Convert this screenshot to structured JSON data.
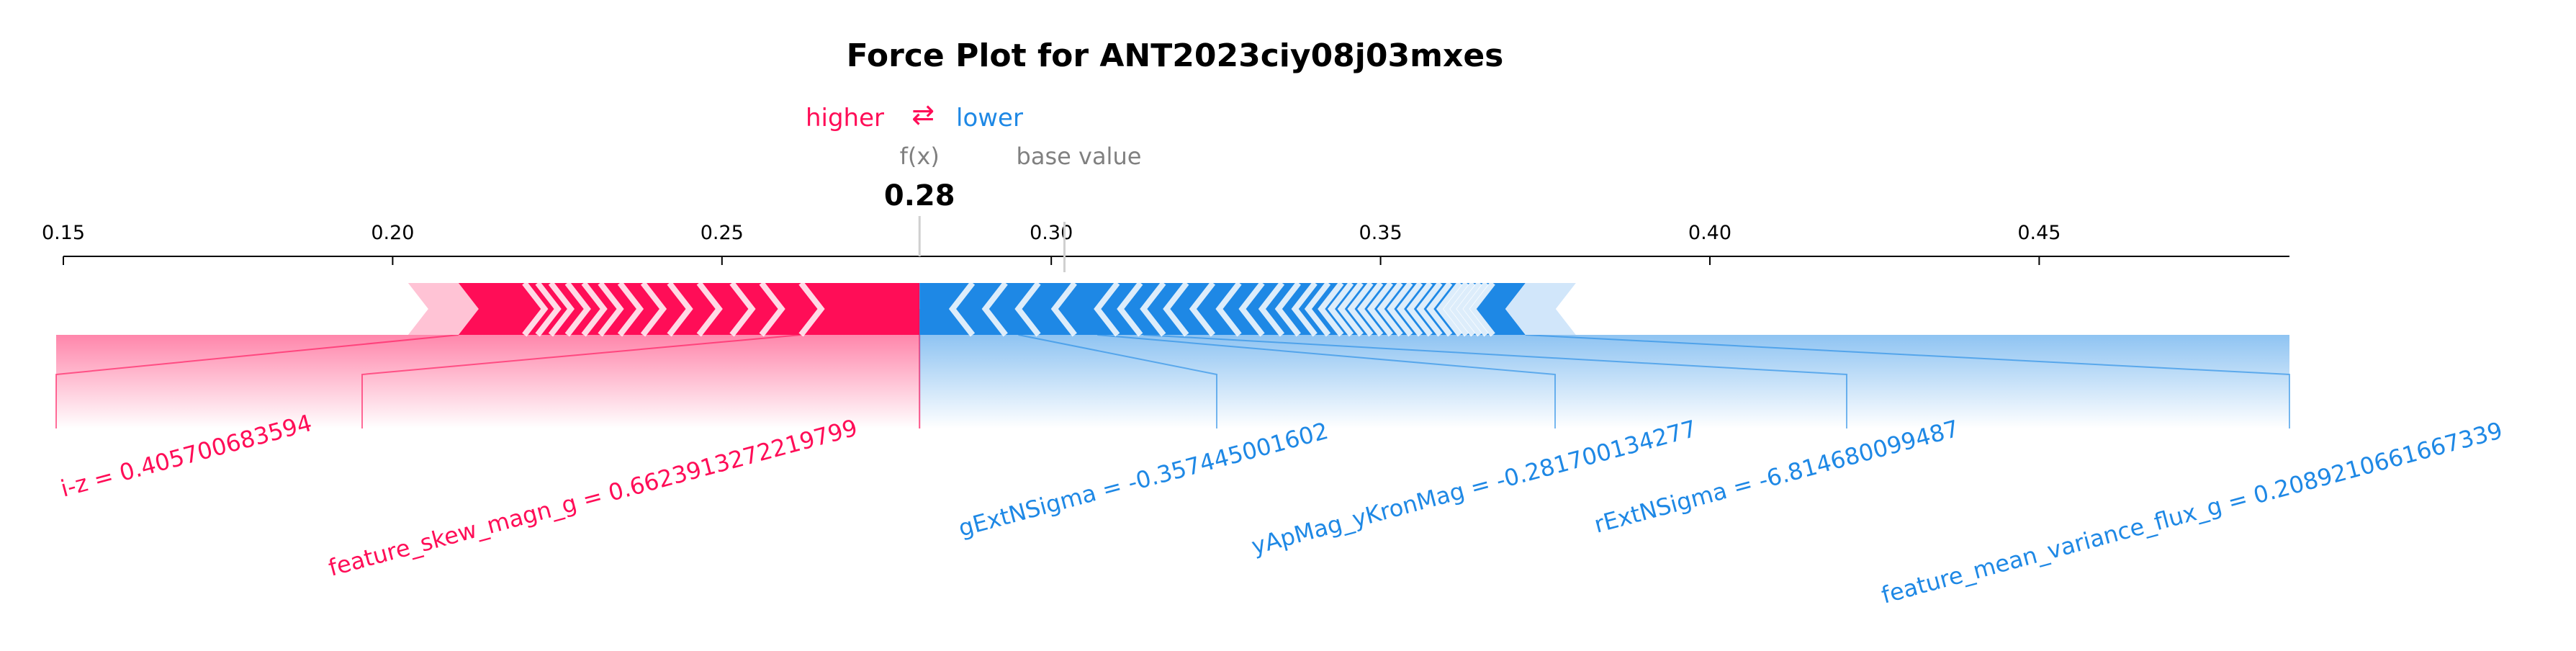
{
  "chart_data": {
    "type": "force",
    "title": "Force Plot for ANT2023ciy08j03mxes",
    "legend": {
      "higher_label": "higher",
      "arrow_glyph": "⇄",
      "lower_label": "lower"
    },
    "fx_label": "f(x)",
    "base_value_label": "base value",
    "output_value": 0.28,
    "output_value_text": "0.28",
    "base_value": 0.302,
    "xlim": [
      0.15,
      0.488
    ],
    "ticks": [
      {
        "value": 0.15,
        "label": "0.15"
      },
      {
        "value": 0.2,
        "label": "0.20"
      },
      {
        "value": 0.25,
        "label": "0.25"
      },
      {
        "value": 0.3,
        "label": "0.30"
      },
      {
        "value": 0.35,
        "label": "0.35"
      },
      {
        "value": 0.4,
        "label": "0.40"
      },
      {
        "value": 0.45,
        "label": "0.45"
      }
    ],
    "positive_features": [
      {
        "label": "i-z = 0.405700683594",
        "from": 0.21,
        "to": 0.262
      },
      {
        "label": "feature_skew_magn_g = 0.6623913272219799",
        "from": 0.262,
        "to": 0.28
      }
    ],
    "negative_features": [
      {
        "label": "gExtNSigma = -0.357445001602",
        "from": 0.28,
        "to": 0.295
      },
      {
        "label": "yApMag_yKronMag = -0.281700134277",
        "from": 0.295,
        "to": 0.307
      },
      {
        "label": "rExtNSigma = -6.814680099487",
        "from": 0.307,
        "to": 0.314
      },
      {
        "label": "feature_mean_variance_flux_g = 0.2089210661667339",
        "from": 0.314,
        "to": 0.372
      }
    ],
    "minor_positive_boundaries": [
      0.22,
      0.222,
      0.224,
      0.2265,
      0.229,
      0.2315,
      0.2345,
      0.238,
      0.242,
      0.2465,
      0.2515,
      0.256
    ],
    "minor_negative_boundaries": [
      0.285,
      0.29,
      0.3005,
      0.3105,
      0.3175,
      0.3215,
      0.3255,
      0.329,
      0.332,
      0.3345,
      0.337,
      0.339,
      0.341,
      0.3425,
      0.344,
      0.3455,
      0.347,
      0.3485,
      0.35,
      0.3515,
      0.353,
      0.3545,
      0.356,
      0.3575,
      0.359,
      0.36,
      0.361,
      0.362,
      0.363,
      0.364
    ],
    "colors": {
      "positive": "#ff0d57",
      "positive_light": "#ffc3d5",
      "negative": "#1e88e5",
      "negative_light": "#d1e6fa",
      "axis": "#000000",
      "muted_label": "#808080"
    }
  }
}
